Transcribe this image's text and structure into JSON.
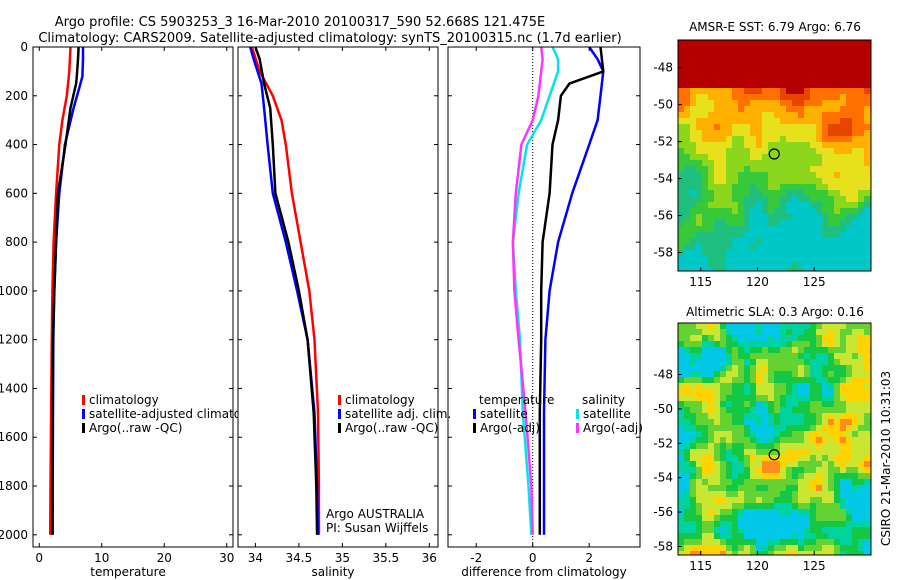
{
  "header": {
    "title_line1": "Argo profile: CS 5903253_3 16-Mar-2010 20100317_590 52.668S 121.475E",
    "title_line2": "Climatology: CARS2009. Satellite-adjusted climatology: synTS_20100315.nc (1.7d earlier)"
  },
  "footer": {
    "side_text": "CSIRO 21-Mar-2010 10:31:03"
  },
  "colors": {
    "red": "#ff0000",
    "blue": "#0000ff",
    "black": "#000000",
    "cyan": "#00e6e6",
    "magenta": "#ff33ff"
  },
  "chart_data": [
    {
      "id": "temperature",
      "type": "line",
      "xlabel": "temperature",
      "ylabel": "",
      "xlim": [
        -1,
        31
      ],
      "ylim": [
        2050,
        0
      ],
      "xticks": [
        0,
        10,
        20,
        30
      ],
      "yticks": [
        0,
        200,
        400,
        600,
        800,
        1000,
        1200,
        1400,
        1600,
        1800,
        2000
      ],
      "legend": {
        "placement": "lower-right",
        "entries": [
          "climatology",
          "satellite-adjusted climatology",
          "Argo(..raw -QC)"
        ]
      },
      "series": [
        {
          "name": "climatology",
          "color": "red",
          "x": [
            5.0,
            4.8,
            4.4,
            3.7,
            3.2,
            2.7,
            2.3,
            2.1,
            2.0,
            1.9,
            1.8,
            1.75
          ],
          "y": [
            0,
            100,
            200,
            300,
            400,
            600,
            800,
            1000,
            1200,
            1500,
            1800,
            2000
          ]
        },
        {
          "name": "satellite-adjusted climatology",
          "color": "blue",
          "x": [
            7.0,
            7.0,
            6.9,
            6.6,
            5.5,
            4.1,
            3.2,
            2.7,
            2.4,
            2.25,
            2.2,
            2.15,
            2.15
          ],
          "y": [
            0,
            50,
            120,
            150,
            250,
            400,
            600,
            800,
            1000,
            1200,
            1500,
            1800,
            2000
          ]
        },
        {
          "name": "Argo(..raw -QC)",
          "color": "black",
          "x": [
            6.3,
            6.2,
            6.0,
            5.9,
            5.0,
            4.2,
            3.0,
            2.7,
            2.4,
            2.2,
            2.15,
            2.1,
            2.1
          ],
          "y": [
            0,
            50,
            120,
            150,
            250,
            400,
            600,
            800,
            1000,
            1200,
            1500,
            1800,
            2000
          ]
        }
      ]
    },
    {
      "id": "salinity",
      "type": "line",
      "xlabel": "salinity",
      "ylabel": "",
      "xlim": [
        33.8,
        36.1
      ],
      "ylim": [
        2050,
        0
      ],
      "xticks": [
        34,
        34.5,
        35,
        35.5,
        36
      ],
      "xticklabels": [
        "34",
        "34.5",
        "35",
        "35.5",
        "36"
      ],
      "legend": {
        "placement": "lower-right",
        "entries": [
          "climatology",
          "satellite adj. clim.",
          "Argo(..raw -QC)"
        ]
      },
      "annotations": [
        "Argo AUSTRALIA",
        "PI: Susan Wijffels"
      ],
      "series": [
        {
          "name": "climatology",
          "color": "red",
          "x": [
            33.96,
            34.05,
            34.2,
            34.3,
            34.35,
            34.42,
            34.52,
            34.62,
            34.68,
            34.72,
            34.73,
            34.73
          ],
          "y": [
            0,
            100,
            200,
            300,
            400,
            600,
            800,
            1000,
            1200,
            1500,
            1800,
            2000
          ]
        },
        {
          "name": "satellite adj. clim.",
          "color": "blue",
          "x": [
            33.94,
            33.98,
            34.07,
            34.1,
            34.14,
            34.2,
            34.35,
            34.48,
            34.6,
            34.68,
            34.71,
            34.72
          ],
          "y": [
            0,
            50,
            150,
            250,
            400,
            600,
            800,
            1000,
            1200,
            1500,
            1800,
            2000
          ]
        },
        {
          "name": "Argo(..raw -QC)",
          "color": "black",
          "x": [
            34.0,
            34.05,
            34.1,
            34.17,
            34.2,
            34.23,
            34.38,
            34.5,
            34.6,
            34.67,
            34.7,
            34.71
          ],
          "y": [
            0,
            50,
            150,
            250,
            400,
            600,
            800,
            1000,
            1200,
            1500,
            1800,
            2000
          ]
        }
      ]
    },
    {
      "id": "difference",
      "type": "line",
      "xlabel": "difference from climatology",
      "ylabel": "",
      "xlim": [
        -3,
        3.8
      ],
      "ylim": [
        2050,
        0
      ],
      "xticks": [
        -2,
        0,
        2
      ],
      "xticklabels": [
        "-2",
        "0",
        "2"
      ],
      "zero_line": true,
      "legend": {
        "placement": "lower-center",
        "headers": [
          "temperature",
          "salinity"
        ],
        "entries": [
          "satellite",
          "Argo(-adj)",
          "satellite",
          "Argo(-adj)"
        ]
      },
      "series": [
        {
          "name": "temperature satellite",
          "color": "blue",
          "x": [
            2.0,
            2.3,
            2.5,
            2.4,
            2.3,
            2.0,
            1.4,
            0.9,
            0.6,
            0.45,
            0.4,
            0.4,
            0.4
          ],
          "y": [
            0,
            50,
            100,
            200,
            300,
            400,
            600,
            800,
            1000,
            1200,
            1500,
            1800,
            2000
          ]
        },
        {
          "name": "temperature Argo(-adj)",
          "color": "black",
          "x": [
            2.4,
            2.5,
            1.3,
            1.0,
            0.9,
            0.7,
            0.6,
            0.35,
            0.3,
            0.3,
            0.25,
            0.25,
            0.25
          ],
          "y": [
            0,
            100,
            150,
            200,
            300,
            400,
            600,
            800,
            1000,
            1200,
            1500,
            1800,
            2000
          ]
        },
        {
          "name": "salinity satellite",
          "color": "cyan",
          "x": [
            0.7,
            0.9,
            0.9,
            0.6,
            0.3,
            -0.2,
            -0.5,
            -0.7,
            -0.6,
            -0.45,
            -0.35,
            -0.15,
            -0.05
          ],
          "y": [
            0,
            50,
            100,
            200,
            300,
            400,
            600,
            800,
            1000,
            1200,
            1500,
            1800,
            2000
          ]
        },
        {
          "name": "salinity Argo(-adj)",
          "color": "magenta",
          "x": [
            0.3,
            0.35,
            0.3,
            0.2,
            0.0,
            -0.4,
            -0.6,
            -0.7,
            -0.65,
            -0.5,
            -0.25,
            -0.05,
            0.0
          ],
          "y": [
            0,
            50,
            100,
            200,
            300,
            400,
            600,
            800,
            1000,
            1200,
            1500,
            1800,
            2000
          ]
        }
      ]
    },
    {
      "id": "sst_map",
      "type": "heatmap",
      "title": "AMSR-E SST: 6.79 Argo: 6.76",
      "xlim": [
        113,
        130
      ],
      "ylim": [
        -59,
        -46.5
      ],
      "xticks": [
        115,
        120,
        125
      ],
      "yticks": [
        -48,
        -50,
        -52,
        -54,
        -56,
        -58
      ],
      "marker": {
        "lon": 121.475,
        "lat": -52.668
      },
      "palette": [
        "#00c8c8",
        "#1fbf7f",
        "#37c93a",
        "#8cd71c",
        "#e6e11c",
        "#ffb000",
        "#ff7000",
        "#e84400",
        "#b40000"
      ]
    },
    {
      "id": "sla_map",
      "type": "heatmap",
      "title": "Altimetric SLA: 0.3 Argo: 0.16",
      "xlim": [
        113,
        130
      ],
      "ylim": [
        -58.5,
        -45
      ],
      "xticks": [
        115,
        120,
        125
      ],
      "yticks": [
        -48,
        -50,
        -52,
        -54,
        -56,
        -58
      ],
      "marker": {
        "lon": 121.475,
        "lat": -52.668
      },
      "palette": [
        "#00c8e6",
        "#00d2a0",
        "#14c846",
        "#64d232",
        "#c8e632",
        "#ffd200",
        "#ff8c1e",
        "#ff501e"
      ]
    }
  ]
}
